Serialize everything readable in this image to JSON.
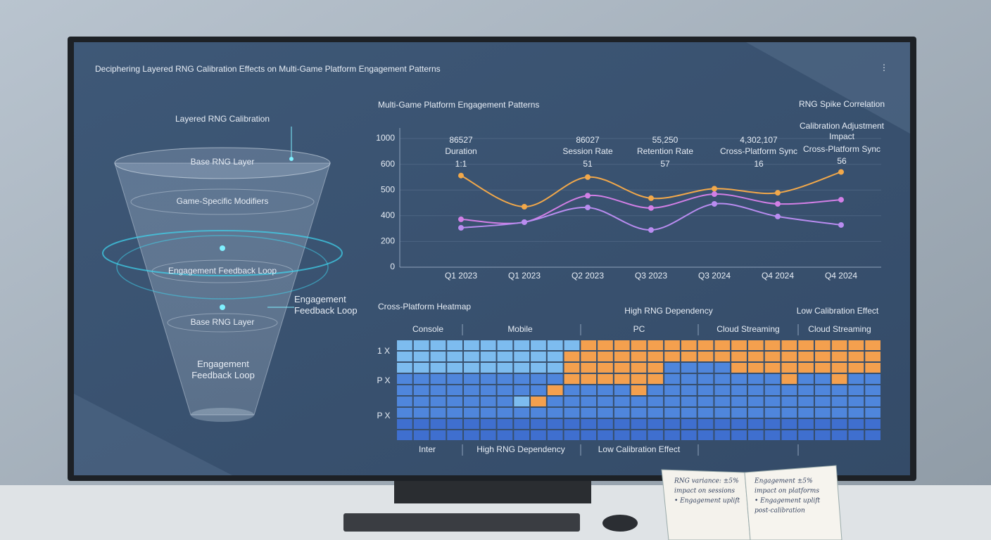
{
  "header": {
    "title": "Deciphering Layered RNG Calibration Effects on Multi-Game Platform Engagement Patterns"
  },
  "funnel": {
    "title": "Layered RNG Calibration",
    "layers": [
      "Base RNG Layer",
      "Game-Specific Modifiers",
      "Engagement Feedback Loop",
      "Base RNG Layer",
      "Engagement Feedback Loop"
    ],
    "side_label": "Engagement Feedback Loop"
  },
  "chart_data": [
    {
      "type": "line",
      "title": "Multi-Game Platform Engagement Patterns",
      "categories": [
        "Q1 2023",
        "Q1 2023",
        "Q2 2023",
        "Q3 2023",
        "Q3 2024",
        "Q4 2024",
        "Q4 2024"
      ],
      "series": [
        {
          "color": "#f2a84a",
          "values": [
            556,
            435,
            550,
            468,
            505,
            489,
            570
          ]
        },
        {
          "color": "#d27fe6",
          "values": [
            372,
            350,
            478,
            430,
            484,
            446,
            462
          ]
        },
        {
          "color": "#b98cf0",
          "values": [
            306,
            350,
            432,
            289,
            446,
            394,
            328
          ]
        }
      ],
      "ylim": [
        0,
        1000
      ],
      "yticks": [
        0,
        200,
        400,
        500,
        600,
        1000
      ],
      "grid": true,
      "annotations": [
        {
          "value": "86527",
          "label": "Duration",
          "note": "1:1"
        },
        {
          "value": "86027",
          "label": "Session Rate",
          "note": "51"
        },
        {
          "value": "55,250",
          "label": "Retention Rate",
          "note": "57"
        },
        {
          "value": "4,302,107",
          "label": "Cross-Platform Sync",
          "note": "16"
        }
      ],
      "side_notes": [
        "RNG Spike Correlation",
        "Calibration Adjustment",
        "Impact",
        "Cross-Platform Sync",
        "56"
      ]
    },
    {
      "type": "heatmap",
      "title": "Cross-Platform Heatmap",
      "top_labels": [
        "High RNG Dependency",
        "Low Calibration Effect"
      ],
      "columns": [
        "Console",
        "Mobile",
        "PC",
        "Cloud Streaming",
        "Cloud Streaming"
      ],
      "row_labels": [
        "1 X",
        "P X",
        "P X"
      ],
      "bottom_labels": [
        "Inter",
        "High RNG Dependency",
        "Low Calibration Effect"
      ],
      "colors": [
        "#3f6fcf",
        "#4f86dc",
        "#7dbcef",
        "#f4a04e"
      ],
      "cells": [
        [
          2,
          2,
          2,
          2,
          2,
          2,
          2,
          2,
          2,
          2,
          2,
          3,
          3,
          3,
          3,
          3,
          3,
          3,
          3,
          3,
          3,
          3,
          3,
          3,
          3,
          3,
          3,
          3,
          3
        ],
        [
          2,
          2,
          2,
          2,
          2,
          2,
          2,
          2,
          2,
          2,
          3,
          3,
          3,
          3,
          3,
          3,
          3,
          3,
          3,
          3,
          3,
          3,
          3,
          3,
          3,
          3,
          3,
          3,
          3
        ],
        [
          2,
          2,
          2,
          2,
          2,
          2,
          2,
          2,
          2,
          2,
          3,
          3,
          3,
          3,
          3,
          3,
          1,
          1,
          1,
          1,
          3,
          3,
          3,
          3,
          3,
          3,
          3,
          3,
          3
        ],
        [
          1,
          1,
          1,
          1,
          1,
          1,
          1,
          1,
          1,
          1,
          3,
          3,
          3,
          3,
          3,
          3,
          1,
          1,
          1,
          1,
          1,
          1,
          1,
          3,
          1,
          1,
          3,
          1,
          1
        ],
        [
          1,
          1,
          1,
          1,
          1,
          1,
          1,
          1,
          1,
          3,
          1,
          1,
          1,
          1,
          3,
          1,
          1,
          1,
          1,
          1,
          1,
          1,
          1,
          1,
          1,
          1,
          1,
          1,
          1
        ],
        [
          1,
          1,
          1,
          1,
          1,
          1,
          1,
          2,
          3,
          1,
          1,
          1,
          1,
          1,
          1,
          1,
          1,
          1,
          1,
          1,
          1,
          1,
          1,
          1,
          1,
          1,
          1,
          1,
          1
        ],
        [
          1,
          1,
          1,
          1,
          1,
          1,
          1,
          1,
          1,
          1,
          1,
          1,
          1,
          1,
          1,
          1,
          1,
          1,
          1,
          1,
          1,
          1,
          1,
          1,
          1,
          1,
          1,
          1,
          1
        ],
        [
          0,
          0,
          0,
          0,
          0,
          0,
          0,
          0,
          0,
          0,
          0,
          0,
          0,
          0,
          0,
          0,
          0,
          0,
          0,
          0,
          0,
          0,
          0,
          0,
          0,
          0,
          0,
          0,
          0
        ],
        [
          0,
          0,
          0,
          0,
          0,
          0,
          0,
          0,
          0,
          0,
          0,
          0,
          0,
          0,
          0,
          0,
          0,
          0,
          0,
          0,
          0,
          0,
          0,
          0,
          0,
          0,
          0,
          0,
          0
        ]
      ]
    }
  ],
  "notebook": {
    "left": [
      "RNG variance: ±5%",
      "impact on sessions",
      "• Engagement uplift"
    ],
    "right": [
      "Engagement ±5%",
      "impact on platforms",
      "• Engagement uplift",
      "post-calibration"
    ]
  }
}
